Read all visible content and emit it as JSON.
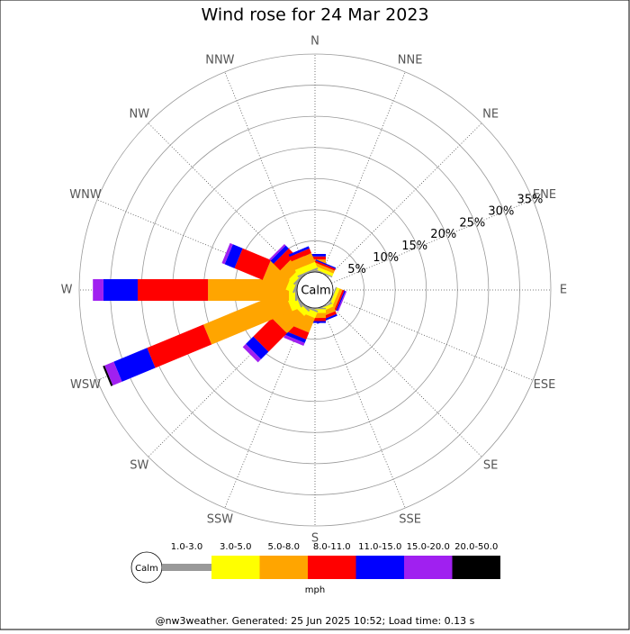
{
  "chart_data": {
    "type": "windrose",
    "title": "Wind rose for 24 Mar 2023",
    "directions": [
      "N",
      "NNE",
      "NE",
      "ENE",
      "E",
      "ESE",
      "SE",
      "SSE",
      "S",
      "SSW",
      "SW",
      "WSW",
      "W",
      "WNW",
      "NW",
      "NNW"
    ],
    "center_label": "Calm",
    "ylim": [
      0,
      35
    ],
    "yticks": [
      {
        "value": 5,
        "label": "5%"
      },
      {
        "value": 10,
        "label": "10%"
      },
      {
        "value": 15,
        "label": "15%"
      },
      {
        "value": 20,
        "label": "20%"
      },
      {
        "value": 25,
        "label": "25%"
      },
      {
        "value": 30,
        "label": "30%"
      },
      {
        "value": 35,
        "label": "35%"
      }
    ],
    "series": [
      {
        "name": "1.0-3.0",
        "color": "#999999",
        "values": [
          0.2,
          0.2,
          0,
          0,
          0,
          0.2,
          0,
          0.2,
          0.2,
          0.3,
          0.3,
          0.3,
          0.3,
          0.3,
          0.3,
          0.3
        ]
      },
      {
        "name": "3.0-5.0",
        "color": "#ffff00",
        "values": [
          0.8,
          0.5,
          0,
          0,
          0,
          0.5,
          0,
          0.5,
          0.6,
          1,
          1,
          1.5,
          1,
          1.2,
          1,
          1
        ]
      },
      {
        "name": "5.0-8.0",
        "color": "#ffa500",
        "values": [
          1,
          0.5,
          0,
          0,
          0,
          0.5,
          0,
          0.8,
          0.8,
          2.5,
          3.9,
          14,
          13,
          4,
          2,
          1.5
        ]
      },
      {
        "name": "8.0-11.0",
        "color": "#ff0000",
        "values": [
          0.5,
          0.3,
          0,
          0,
          0,
          0.3,
          0,
          0.5,
          0.5,
          1.2,
          4.2,
          9.8,
          11.3,
          4.9,
          1.5,
          0.8
        ]
      },
      {
        "name": "11.0-15.0",
        "color": "#0000ff",
        "values": [
          0.4,
          0.2,
          0,
          0,
          0,
          0.2,
          0,
          0.3,
          0.3,
          0.6,
          1.7,
          5.8,
          5.5,
          1.7,
          0.7,
          0.4
        ]
      },
      {
        "name": "15.0-20.0",
        "color": "#a020f0",
        "values": [
          0,
          0,
          0,
          0,
          0,
          0.2,
          0,
          0,
          0,
          0.5,
          0.7,
          1.6,
          1.7,
          0.5,
          0.3,
          0
        ]
      },
      {
        "name": "20.0-50.0",
        "color": "#000000",
        "values": [
          0,
          0,
          0,
          0,
          0,
          0,
          0,
          0,
          0,
          0,
          0,
          0.3,
          0,
          0,
          0,
          0
        ]
      }
    ],
    "legend_unit": "mph",
    "footer": "@nw3weather. Generated: 25 Jun 2025 10:52; Load time: 0.13 s"
  }
}
